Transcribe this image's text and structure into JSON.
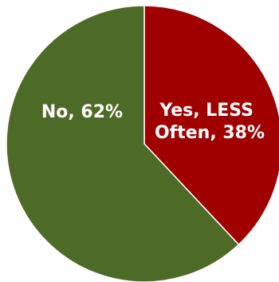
{
  "chart_data": {
    "type": "pie",
    "title": "",
    "slices": [
      {
        "label_lines": [
          "Yes, LESS",
          "Often, 38%"
        ],
        "category": "Yes, LESS Often",
        "value": 38,
        "color": "#a00000"
      },
      {
        "label_lines": [
          "No, 62%"
        ],
        "category": "No",
        "value": 62,
        "color": "#4d6b27"
      }
    ],
    "start_angle": "12 o'clock",
    "direction": "clockwise",
    "legend": "none"
  }
}
